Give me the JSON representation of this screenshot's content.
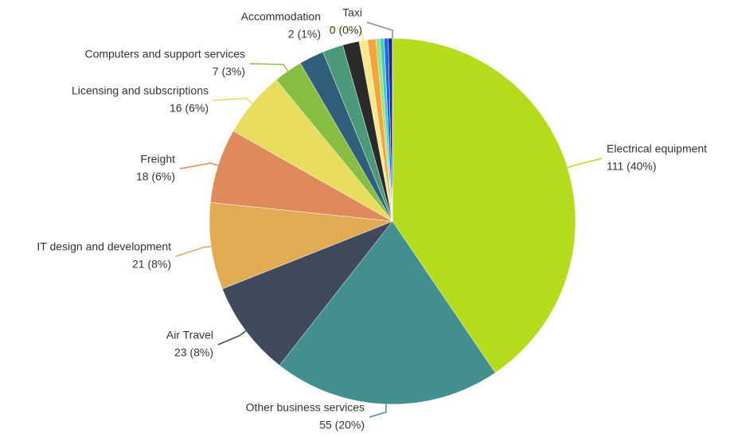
{
  "chart_data": {
    "type": "pie",
    "categories": [
      "Electrical equipment",
      "Other business services",
      "Air Travel",
      "IT design and development",
      "Freight",
      "Licensing and subscriptions",
      "Computers and support services",
      null,
      null,
      null,
      "Accommodation",
      null,
      null,
      null,
      null,
      null,
      "Taxi"
    ],
    "values": [
      111,
      55,
      23,
      21,
      18,
      16,
      7,
      6,
      5,
      4,
      2,
      2,
      1,
      1,
      1,
      1,
      0
    ],
    "value_labels": [
      "111 (40%)",
      "55 (20%)",
      "23 (8%)",
      "21 (8%)",
      "18 (6%)",
      "16 (6%)",
      "7 (3%)",
      null,
      null,
      null,
      "2 (1%)",
      null,
      null,
      null,
      null,
      null,
      "0 (0%)"
    ],
    "colors": [
      "#b5dc1c",
      "#438f8f",
      "#3f4a5c",
      "#e2aa52",
      "#df8a5a",
      "#e8dc5e",
      "#88bf42",
      "#2f5f7a",
      "#4a9a7a",
      "#2a2a2a",
      "#f7e98a",
      "#f5a43a",
      "#a6e07a",
      "#3fd0c0",
      "#2060f0",
      "#1a2a80",
      "#8a8a8a"
    ]
  }
}
